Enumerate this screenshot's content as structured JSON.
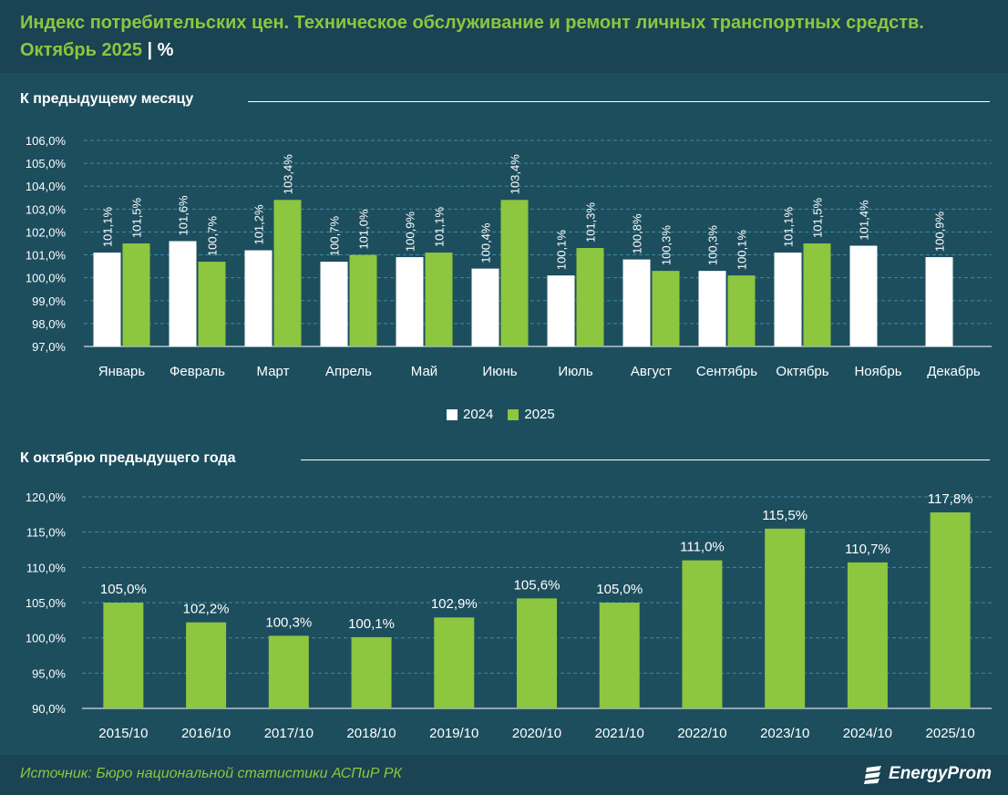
{
  "header": {
    "title": "Индекс потребительских цен. Техническое обслуживание и ремонт личных транспортных средств. Октябрь 2025",
    "unit": "| %"
  },
  "colors": {
    "c2024": "#ffffff",
    "c2025": "#8dc63f",
    "bg": "#1d4e5e"
  },
  "chart_data": [
    {
      "type": "bar",
      "title": "К предыдущему месяцу",
      "categories": [
        "Январь",
        "Февраль",
        "Март",
        "Апрель",
        "Май",
        "Июнь",
        "Июль",
        "Август",
        "Сентябрь",
        "Октябрь",
        "Ноябрь",
        "Декабрь"
      ],
      "series": [
        {
          "name": "2024",
          "values": [
            101.1,
            101.6,
            101.2,
            100.7,
            100.9,
            100.4,
            100.1,
            100.8,
            100.3,
            101.1,
            101.4,
            100.9
          ],
          "labels": [
            "101,1%",
            "101,6%",
            "101,2%",
            "100,7%",
            "100,9%",
            "100,4%",
            "100,1%",
            "100,8%",
            "100,3%",
            "101,1%",
            "101,4%",
            "100,9%"
          ]
        },
        {
          "name": "2025",
          "values": [
            101.5,
            100.7,
            103.4,
            101.0,
            101.1,
            103.4,
            101.3,
            100.3,
            100.1,
            101.5,
            null,
            null
          ],
          "labels": [
            "101,5%",
            "100,7%",
            "103,4%",
            "101,0%",
            "101,1%",
            "103,4%",
            "101,3%",
            "100,3%",
            "100,1%",
            "101,5%",
            "",
            ""
          ]
        }
      ],
      "ylim": [
        97.0,
        106.0
      ],
      "yticks": [
        97,
        98,
        99,
        100,
        101,
        102,
        103,
        104,
        105,
        106
      ],
      "ytick_labels": [
        "97,0%",
        "98,0%",
        "99,0%",
        "100,0%",
        "101,0%",
        "102,0%",
        "103,0%",
        "104,0%",
        "105,0%",
        "106,0%"
      ],
      "legend": [
        "2024",
        "2025"
      ]
    },
    {
      "type": "bar",
      "title": "К октябрю предыдущего года",
      "categories": [
        "2015/10",
        "2016/10",
        "2017/10",
        "2018/10",
        "2019/10",
        "2020/10",
        "2021/10",
        "2022/10",
        "2023/10",
        "2024/10",
        "2025/10"
      ],
      "values": [
        105.0,
        102.2,
        100.3,
        100.1,
        102.9,
        105.6,
        105.0,
        111.0,
        115.5,
        110.7,
        117.8
      ],
      "labels": [
        "105,0%",
        "102,2%",
        "100,3%",
        "100,1%",
        "102,9%",
        "105,6%",
        "105,0%",
        "111,0%",
        "115,5%",
        "110,7%",
        "117,8%"
      ],
      "ylim": [
        90.0,
        120.0
      ],
      "yticks": [
        90,
        95,
        100,
        105,
        110,
        115,
        120
      ],
      "ytick_labels": [
        "90,0%",
        "95,0%",
        "100,0%",
        "105,0%",
        "110,0%",
        "115,0%",
        "120,0%"
      ]
    }
  ],
  "footer": {
    "source": "Источник: Бюро национальной статистики АСПиР РК",
    "logo": "EnergyProm",
    "logo_icon": "energyprom-logo-icon"
  }
}
